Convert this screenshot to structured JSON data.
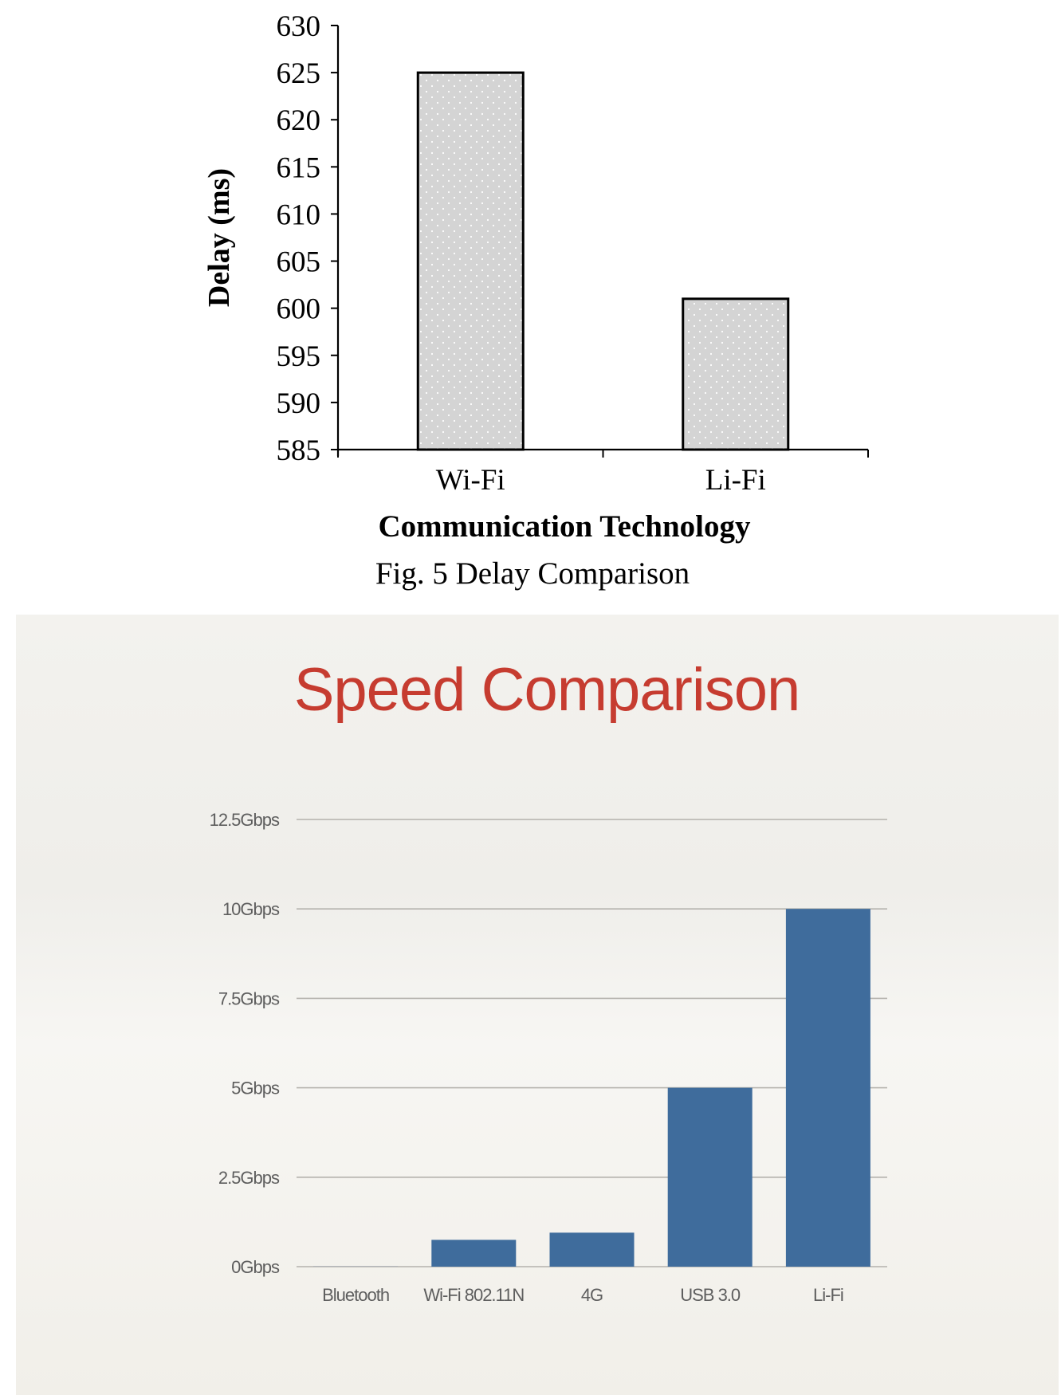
{
  "chart_data": [
    {
      "type": "bar",
      "title": "",
      "caption": "Fig. 5 Delay Comparison",
      "xlabel": "Communication Technology",
      "ylabel": "Delay (ms)",
      "categories": [
        "Wi-Fi",
        "Li-Fi"
      ],
      "values": [
        625,
        601
      ],
      "ylim": [
        585,
        630
      ],
      "yticks": [
        585,
        590,
        595,
        600,
        605,
        610,
        615,
        620,
        625,
        630
      ],
      "grid": false,
      "bar_fill": "#d4d4d4",
      "bar_pattern": "dotted",
      "bar_edge": "#000000"
    },
    {
      "type": "bar",
      "title": "Speed Comparison",
      "xlabel": "",
      "ylabel": "",
      "categories": [
        "Bluetooth",
        "Wi-Fi 802.11N",
        "4G",
        "USB 3.0",
        "Li-Fi"
      ],
      "values": [
        0.003,
        0.75,
        0.95,
        5,
        10
      ],
      "unit": "Gbps",
      "ylim": [
        0,
        12.5
      ],
      "yticks": [
        0,
        2.5,
        5,
        7.5,
        10,
        12.5
      ],
      "ytick_labels": [
        "0Gbps",
        "2.5Gbps",
        "5Gbps",
        "7.5Gbps",
        "10Gbps",
        "12.5Gbps"
      ],
      "grid": true,
      "bar_color": "#3f6c9c",
      "title_color": "#c63c30"
    }
  ]
}
